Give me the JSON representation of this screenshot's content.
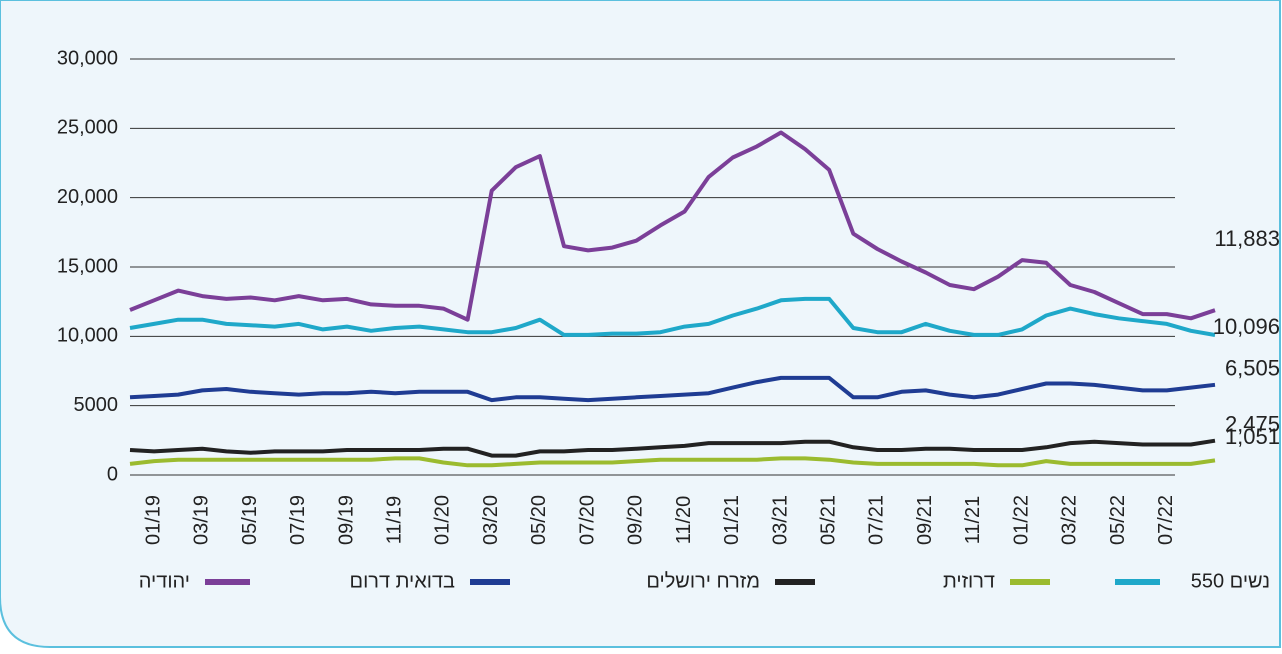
{
  "chart_data": {
    "type": "line",
    "categories": [
      null,
      "01/19",
      null,
      "03/19",
      null,
      "05/19",
      null,
      "07/19",
      null,
      "09/19",
      null,
      "11/19",
      null,
      "01/20",
      null,
      "03/20",
      null,
      "05/20",
      null,
      "07/20",
      null,
      "09/20",
      null,
      "11/20",
      null,
      "01/21",
      null,
      "03/21",
      null,
      "05/21",
      null,
      "07/21",
      null,
      "09/21",
      null,
      "11/21",
      null,
      "01/22",
      null,
      "03/22",
      null,
      "05/22",
      null,
      "07/22",
      null,
      null
    ],
    "ylim": [
      0,
      30000
    ],
    "yticks": [
      0,
      5000,
      {
        "value": 10000,
        "label": "10,000"
      },
      {
        "value": 15000,
        "label": "15,000"
      },
      {
        "value": 20000,
        "label": "20,000"
      },
      {
        "value": 25000,
        "label": "25,000"
      },
      {
        "value": 30000,
        "label": "30,000"
      }
    ],
    "grid": true,
    "series": [
      {
        "name": "יהודיה",
        "color": "#7b3f98",
        "values": [
          11900,
          12600,
          13300,
          12900,
          12700,
          12800,
          12600,
          12900,
          12600,
          12700,
          12300,
          12200,
          12200,
          12000,
          11200,
          20500,
          22200,
          23000,
          16500,
          16200,
          16400,
          16900,
          18000,
          19000,
          21500,
          22900,
          23700,
          24700,
          23500,
          22000,
          17400,
          16300,
          15400,
          14600,
          13700,
          13400,
          14300,
          15500,
          15300,
          13700,
          13200,
          12400,
          11600,
          11600,
          11300,
          11883
        ],
        "value_labels": [
          null,
          null,
          null,
          null,
          null,
          null,
          null,
          null,
          null,
          null,
          null,
          null,
          null,
          null,
          null,
          null,
          null,
          null,
          null,
          null,
          null,
          null,
          null,
          null,
          null,
          null,
          null,
          null,
          null,
          null,
          null,
          null,
          null,
          null,
          null,
          null,
          null,
          null,
          null,
          null,
          null,
          null,
          null,
          null,
          null,
          "11,883"
        ]
      },
      {
        "name": "בדואית דרום",
        "color": "#1f3c93",
        "values": [
          5600,
          5700,
          5800,
          6100,
          6200,
          6000,
          5900,
          5800,
          5900,
          5900,
          6000,
          5900,
          6000,
          6000,
          6000,
          5400,
          5600,
          5600,
          5500,
          5400,
          5500,
          5600,
          5700,
          5800,
          5900,
          6300,
          6700,
          7000,
          7000,
          7000,
          5600,
          5600,
          6000,
          6100,
          5800,
          5600,
          5800,
          6200,
          6600,
          6600,
          6500,
          6300,
          6100,
          6100,
          6300,
          6505
        ],
        "value_labels": [
          null,
          null,
          null,
          null,
          null,
          null,
          null,
          null,
          null,
          null,
          null,
          null,
          null,
          null,
          null,
          null,
          null,
          null,
          null,
          null,
          null,
          null,
          null,
          null,
          null,
          null,
          null,
          null,
          null,
          null,
          null,
          null,
          null,
          null,
          null,
          null,
          null,
          null,
          null,
          null,
          null,
          null,
          null,
          null,
          null,
          "6,505"
        ]
      },
      {
        "name": "מזרח ירושלים",
        "color": "#222222",
        "values": [
          1800,
          1700,
          1800,
          1900,
          1700,
          1600,
          1700,
          1700,
          1700,
          1800,
          1800,
          1800,
          1800,
          1900,
          1900,
          1400,
          1400,
          1700,
          1700,
          1800,
          1800,
          1900,
          2000,
          2100,
          2300,
          2300,
          2300,
          2300,
          2400,
          2400,
          2000,
          1800,
          1800,
          1900,
          1900,
          1800,
          1800,
          1800,
          2000,
          2300,
          2400,
          2300,
          2200,
          2200,
          2200,
          2475
        ],
        "value_labels": [
          null,
          null,
          null,
          null,
          null,
          null,
          null,
          null,
          null,
          null,
          null,
          null,
          null,
          null,
          null,
          null,
          null,
          null,
          null,
          null,
          null,
          null,
          null,
          null,
          null,
          null,
          null,
          null,
          null,
          null,
          null,
          null,
          null,
          null,
          null,
          null,
          null,
          null,
          null,
          null,
          null,
          null,
          null,
          null,
          null,
          "2,475"
        ]
      },
      {
        "name": "דרוזית",
        "color": "#9bbb2f",
        "values": [
          800,
          1000,
          1100,
          1100,
          1100,
          1100,
          1100,
          1100,
          1100,
          1100,
          1100,
          1200,
          1200,
          900,
          700,
          700,
          800,
          900,
          900,
          900,
          900,
          1000,
          1100,
          1100,
          1100,
          1100,
          1100,
          1200,
          1200,
          1100,
          900,
          800,
          800,
          800,
          800,
          800,
          700,
          700,
          1000,
          800,
          800,
          800,
          800,
          800,
          800,
          1051
        ],
        "value_labels": [
          null,
          null,
          null,
          null,
          null,
          null,
          null,
          null,
          null,
          null,
          null,
          null,
          null,
          null,
          null,
          null,
          null,
          null,
          null,
          null,
          null,
          null,
          null,
          null,
          null,
          null,
          null,
          null,
          null,
          null,
          null,
          null,
          null,
          null,
          null,
          null,
          null,
          null,
          null,
          null,
          null,
          null,
          null,
          null,
          null,
          "1,051"
        ]
      },
      {
        "name": "נשים 550",
        "color": "#1fa8c9",
        "values": [
          10600,
          10900,
          11200,
          11200,
          10900,
          10800,
          10700,
          10900,
          10500,
          10700,
          10400,
          10600,
          10700,
          10500,
          10300,
          10300,
          10600,
          11200,
          10100,
          10100,
          10200,
          10200,
          10300,
          10700,
          10900,
          11500,
          12000,
          12600,
          12700,
          12700,
          10600,
          10300,
          10300,
          10900,
          10400,
          10100,
          10100,
          10500,
          11500,
          12000,
          11600,
          11300,
          11100,
          10900,
          10400,
          10096
        ],
        "value_labels": [
          null,
          null,
          null,
          null,
          null,
          null,
          null,
          null,
          null,
          null,
          null,
          null,
          null,
          null,
          null,
          null,
          null,
          null,
          null,
          null,
          null,
          null,
          null,
          null,
          null,
          null,
          null,
          null,
          null,
          null,
          null,
          null,
          null,
          null,
          null,
          null,
          null,
          null,
          null,
          null,
          null,
          null,
          null,
          null,
          null,
          "10,096"
        ]
      }
    ]
  }
}
